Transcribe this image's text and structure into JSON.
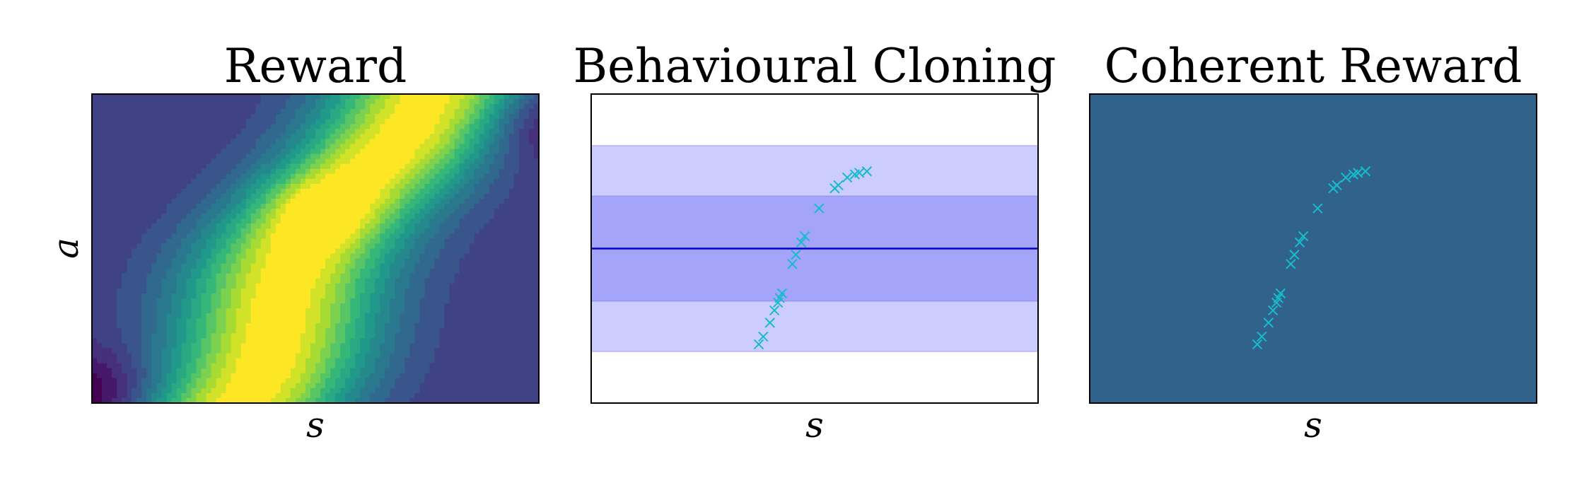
{
  "figure": {
    "panels": [
      {
        "title": "Reward",
        "xlabel": "s",
        "ylabel": "a"
      },
      {
        "title": "Behavioural Cloning",
        "xlabel": "s",
        "ylabel": ""
      },
      {
        "title": "Coherent Reward",
        "xlabel": "s",
        "ylabel": ""
      }
    ]
  },
  "colors": {
    "viridis": [
      "#440154",
      "#482878",
      "#3e4989",
      "#31688e",
      "#26828e",
      "#1f9e89",
      "#35b779",
      "#6ece58",
      "#b5de2b",
      "#fde725"
    ],
    "band_outer": "#ccccff",
    "band_inner": "#a4a4fb",
    "mean_line": "#0000cc",
    "demo_marker": "#17bccc",
    "coherent_background": "#31628c"
  },
  "chart_data": [
    {
      "type": "heatmap",
      "title": "Reward",
      "xlabel": "s",
      "ylabel": "a",
      "xlim": [
        0,
        1
      ],
      "ylim": [
        0,
        1
      ],
      "ticks": "none",
      "colormap": "viridis",
      "contour_levels": 16,
      "ridge": [
        {
          "s": 0.32,
          "a": 0.08
        },
        {
          "s": 0.4,
          "a": 0.3
        },
        {
          "s": 0.5,
          "a": 0.55
        },
        {
          "s": 0.62,
          "a": 0.75
        },
        {
          "s": 0.66,
          "a": 0.82
        }
      ],
      "description_peak": {
        "s": 0.52,
        "a": 0.62
      }
    },
    {
      "type": "line",
      "title": "Behavioural Cloning",
      "xlabel": "s",
      "ylabel": "",
      "xlim": [
        0,
        1
      ],
      "ylim": [
        0,
        1
      ],
      "ticks": "none",
      "mean_a": 0.5,
      "band_inner": [
        0.33,
        0.67
      ],
      "band_outer": [
        0.167,
        0.833
      ],
      "demonstrations": [
        {
          "s": 0.375,
          "a": 0.19
        },
        {
          "s": 0.385,
          "a": 0.215
        },
        {
          "s": 0.4,
          "a": 0.26
        },
        {
          "s": 0.41,
          "a": 0.3
        },
        {
          "s": 0.418,
          "a": 0.325
        },
        {
          "s": 0.422,
          "a": 0.34
        },
        {
          "s": 0.427,
          "a": 0.355
        },
        {
          "s": 0.45,
          "a": 0.45
        },
        {
          "s": 0.458,
          "a": 0.48
        },
        {
          "s": 0.47,
          "a": 0.52
        },
        {
          "s": 0.478,
          "a": 0.54
        },
        {
          "s": 0.51,
          "a": 0.63
        },
        {
          "s": 0.545,
          "a": 0.695
        },
        {
          "s": 0.553,
          "a": 0.705
        },
        {
          "s": 0.573,
          "a": 0.73
        },
        {
          "s": 0.59,
          "a": 0.74
        },
        {
          "s": 0.6,
          "a": 0.745
        },
        {
          "s": 0.617,
          "a": 0.75
        }
      ]
    },
    {
      "type": "scatter",
      "title": "Coherent Reward",
      "xlabel": "s",
      "ylabel": "",
      "xlim": [
        0,
        1
      ],
      "ylim": [
        0,
        1
      ],
      "ticks": "none",
      "demonstrations": [
        {
          "s": 0.375,
          "a": 0.19
        },
        {
          "s": 0.385,
          "a": 0.215
        },
        {
          "s": 0.4,
          "a": 0.26
        },
        {
          "s": 0.41,
          "a": 0.3
        },
        {
          "s": 0.418,
          "a": 0.325
        },
        {
          "s": 0.422,
          "a": 0.34
        },
        {
          "s": 0.427,
          "a": 0.355
        },
        {
          "s": 0.45,
          "a": 0.45
        },
        {
          "s": 0.458,
          "a": 0.48
        },
        {
          "s": 0.47,
          "a": 0.52
        },
        {
          "s": 0.478,
          "a": 0.54
        },
        {
          "s": 0.51,
          "a": 0.63
        },
        {
          "s": 0.545,
          "a": 0.695
        },
        {
          "s": 0.553,
          "a": 0.705
        },
        {
          "s": 0.573,
          "a": 0.73
        },
        {
          "s": 0.59,
          "a": 0.74
        },
        {
          "s": 0.6,
          "a": 0.745
        },
        {
          "s": 0.617,
          "a": 0.75
        }
      ]
    }
  ]
}
